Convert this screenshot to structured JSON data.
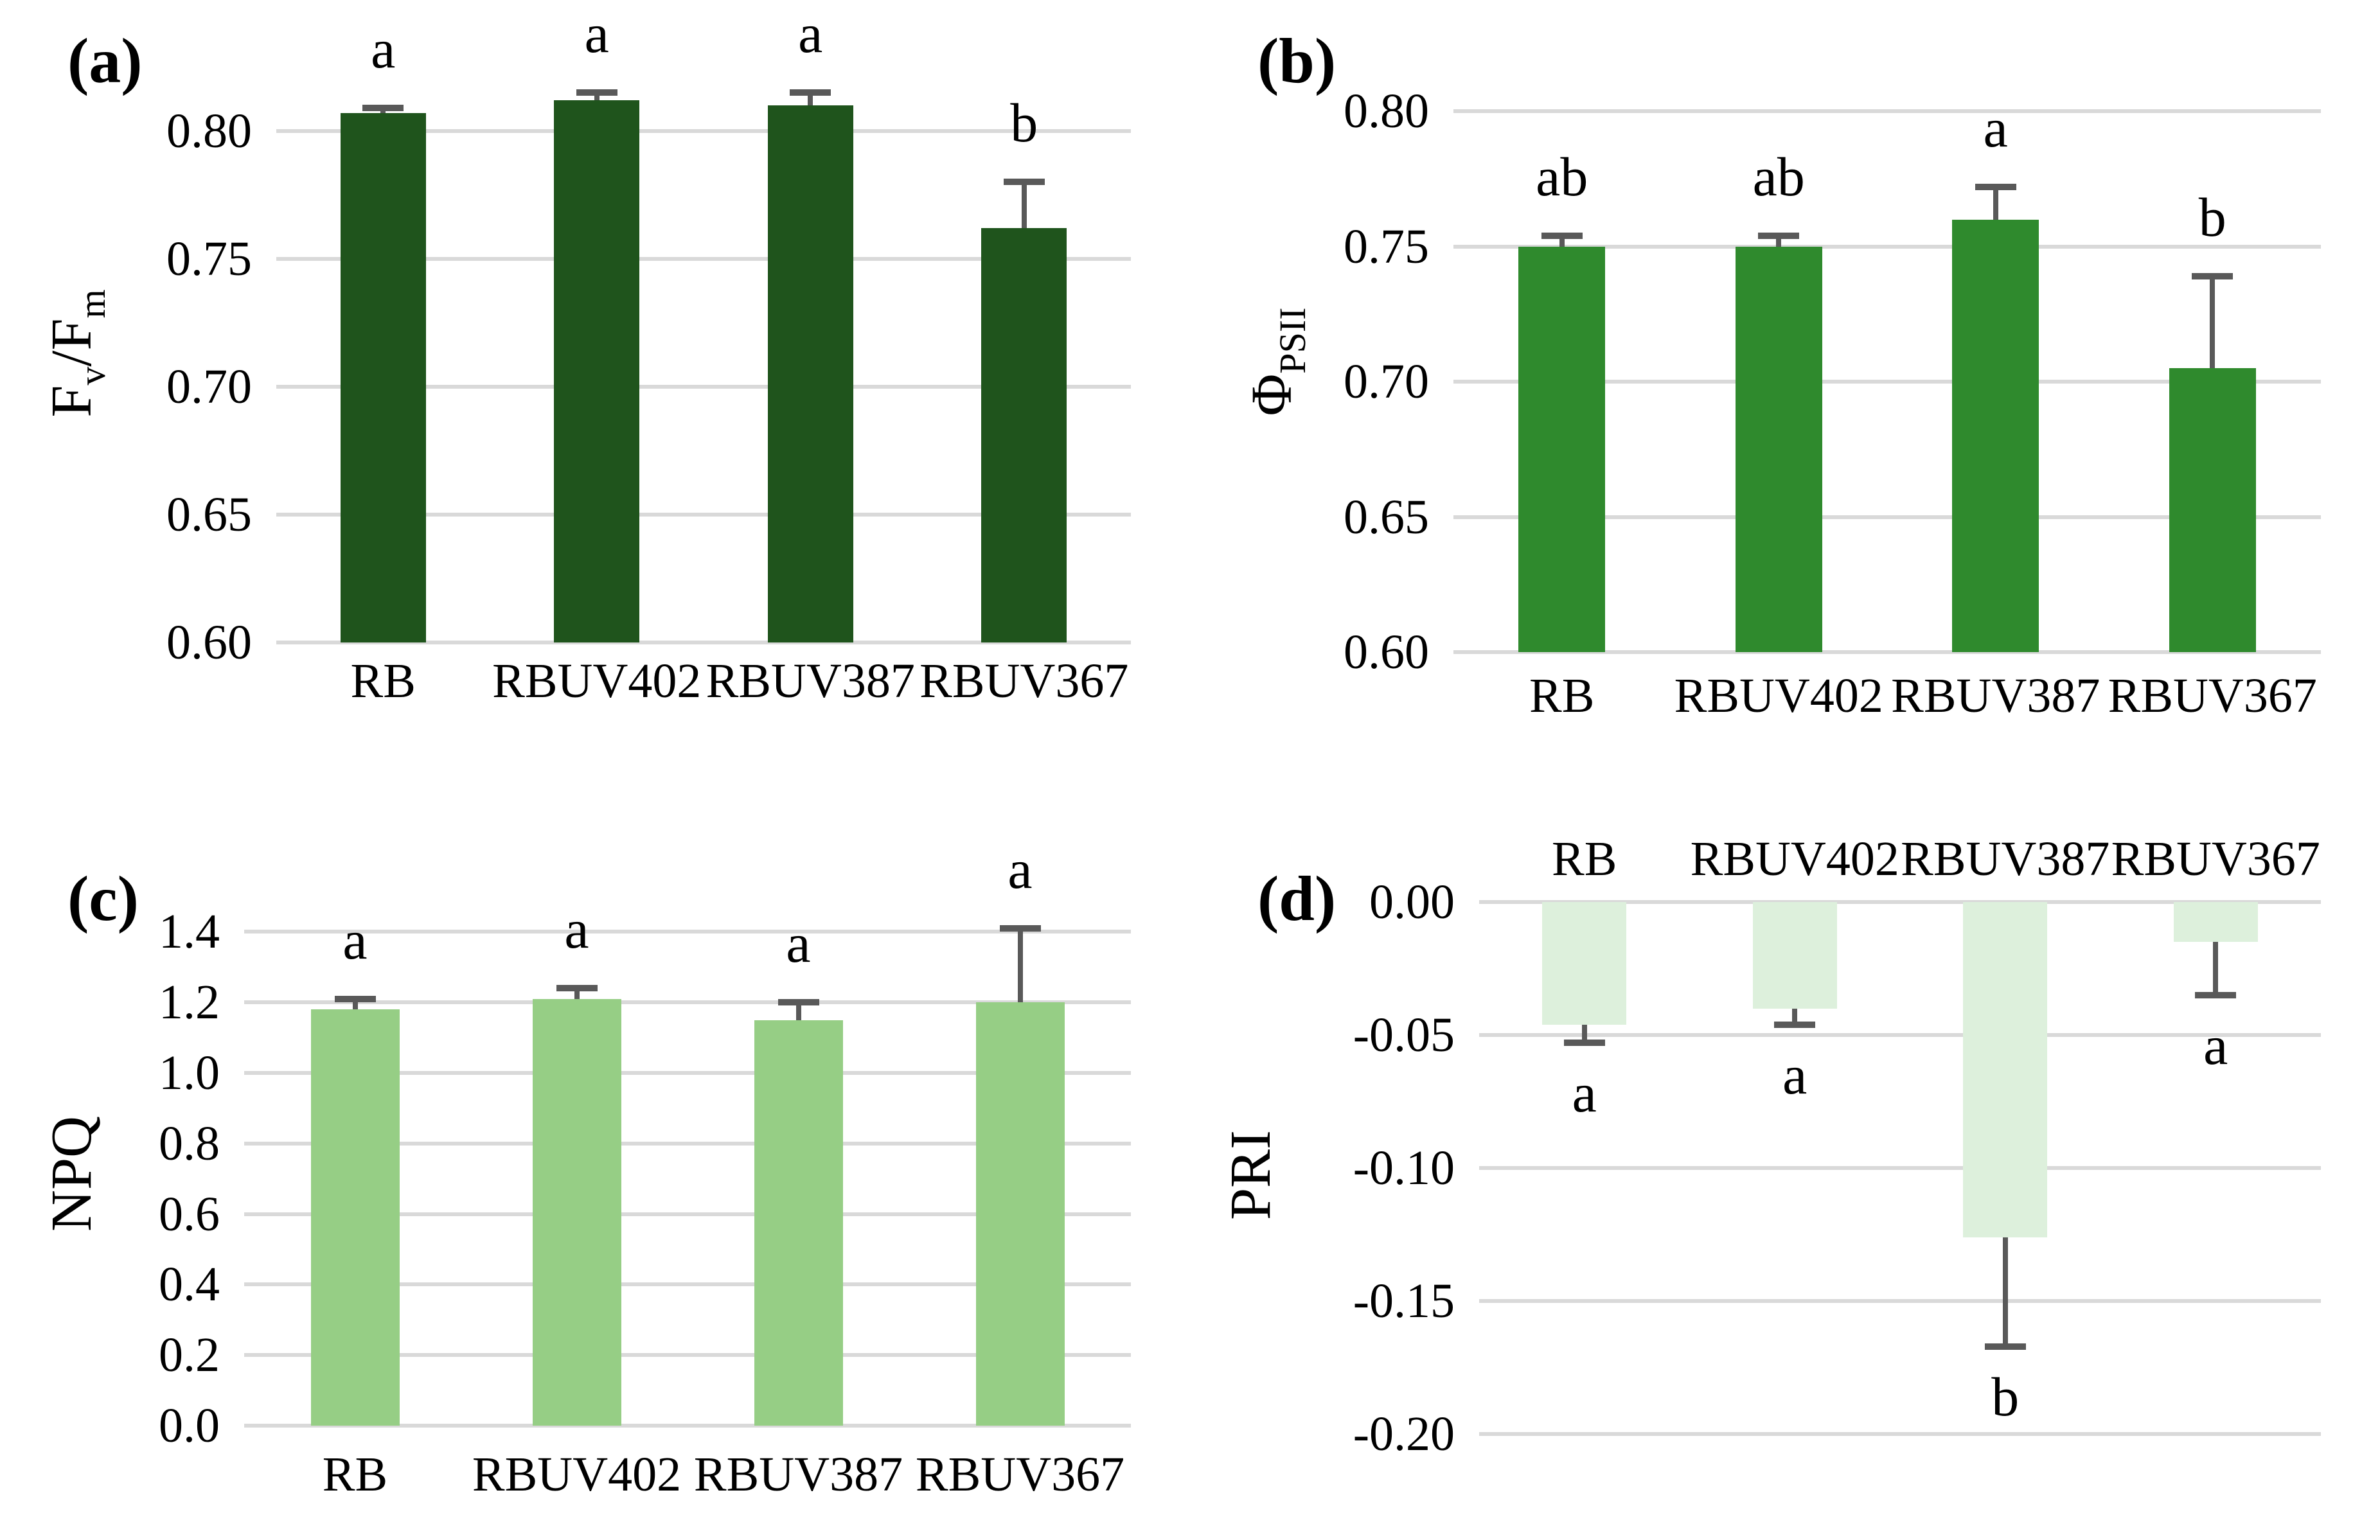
{
  "figure": {
    "background_color": "#ffffff",
    "gridline_color": "#d9d9d9",
    "error_bar_color": "#595959",
    "text_color": "#000000"
  },
  "chart_data": [
    {
      "id": "a",
      "panel_label": "(a)",
      "type": "bar",
      "ylabel_text": "Fv/Fm",
      "ylabel_segments": [
        [
          "F",
          false
        ],
        [
          "v",
          true
        ],
        [
          "/F",
          false
        ],
        [
          "m",
          true
        ]
      ],
      "categories": [
        "RB",
        "RBUV402",
        "RBUV387",
        "RBUV367"
      ],
      "values": [
        0.807,
        0.812,
        0.81,
        0.762
      ],
      "errors": [
        0.002,
        0.003,
        0.005,
        0.018
      ],
      "sig_letters": [
        "a",
        "a",
        "a",
        "b"
      ],
      "bar_color": "#1f541c",
      "ymin": 0.6,
      "ymax": 0.826,
      "baseline": 0.6,
      "yticks": [
        0.8,
        0.75,
        0.7,
        0.65,
        0.6
      ],
      "ytick_labels": [
        "0.80",
        "0.75",
        "0.70",
        "0.65",
        "0.60"
      ],
      "grid": true,
      "legend": "none",
      "error_direction": "up",
      "category_labels_position": "bottom"
    },
    {
      "id": "b",
      "panel_label": "(b)",
      "type": "bar",
      "ylabel_text": "ΦPSII",
      "ylabel_segments": [
        [
          "Φ",
          false
        ],
        [
          "PSII",
          true
        ]
      ],
      "categories": [
        "RB",
        "RBUV402",
        "RBUV387",
        "RBUV367"
      ],
      "values": [
        0.75,
        0.75,
        0.76,
        0.705
      ],
      "errors": [
        0.004,
        0.004,
        0.012,
        0.034
      ],
      "sig_letters": [
        "ab",
        "ab",
        "a",
        "b"
      ],
      "bar_color": "#2f8a2d",
      "ymin": 0.6,
      "ymax": 0.815,
      "baseline": 0.6,
      "yticks": [
        0.8,
        0.75,
        0.7,
        0.65,
        0.6
      ],
      "ytick_labels": [
        "0.80",
        "0.75",
        "0.70",
        "0.65",
        "0.60"
      ],
      "grid": true,
      "legend": "none",
      "error_direction": "up",
      "category_labels_position": "bottom"
    },
    {
      "id": "c",
      "panel_label": "(c)",
      "type": "bar",
      "ylabel_text": "NPQ",
      "ylabel_segments": [
        [
          "NPQ",
          false
        ]
      ],
      "categories": [
        "RB",
        "RBUV402",
        "RBUV387",
        "RBUV367"
      ],
      "values": [
        1.18,
        1.21,
        1.15,
        1.2
      ],
      "errors": [
        0.03,
        0.03,
        0.05,
        0.21
      ],
      "sig_letters": [
        "a",
        "a",
        "a",
        "a"
      ],
      "bar_color": "#96ce85",
      "ymin": 0.0,
      "ymax": 1.43,
      "baseline": 0.0,
      "yticks": [
        1.4,
        1.2,
        1.0,
        0.8,
        0.6,
        0.4,
        0.2,
        0.0
      ],
      "ytick_labels": [
        "1.4",
        "1.2",
        "1.0",
        "0.8",
        "0.6",
        "0.4",
        "0.2",
        "0.0"
      ],
      "grid": true,
      "legend": "none",
      "error_direction": "up",
      "category_labels_position": "bottom"
    },
    {
      "id": "d",
      "panel_label": "(d)",
      "type": "bar",
      "ylabel_text": "PRI",
      "ylabel_segments": [
        [
          "PRI",
          false
        ]
      ],
      "categories": [
        "RB",
        "RBUV402",
        "RBUV387",
        "RBUV367"
      ],
      "values": [
        -0.046,
        -0.04,
        -0.126,
        -0.015
      ],
      "errors": [
        0.007,
        0.006,
        0.041,
        0.02
      ],
      "sig_letters": [
        "a",
        "a",
        "b",
        "a"
      ],
      "bar_color": "#ddf0dc",
      "ymin": -0.205,
      "ymax": 0.0,
      "baseline": 0.0,
      "yticks": [
        0.0,
        -0.05,
        -0.1,
        -0.15,
        -0.2
      ],
      "ytick_labels": [
        "0.00",
        "-0.05",
        "-0.10",
        "-0.15",
        "-0.20"
      ],
      "grid": true,
      "legend": "none",
      "error_direction": "down",
      "category_labels_position": "top"
    }
  ]
}
